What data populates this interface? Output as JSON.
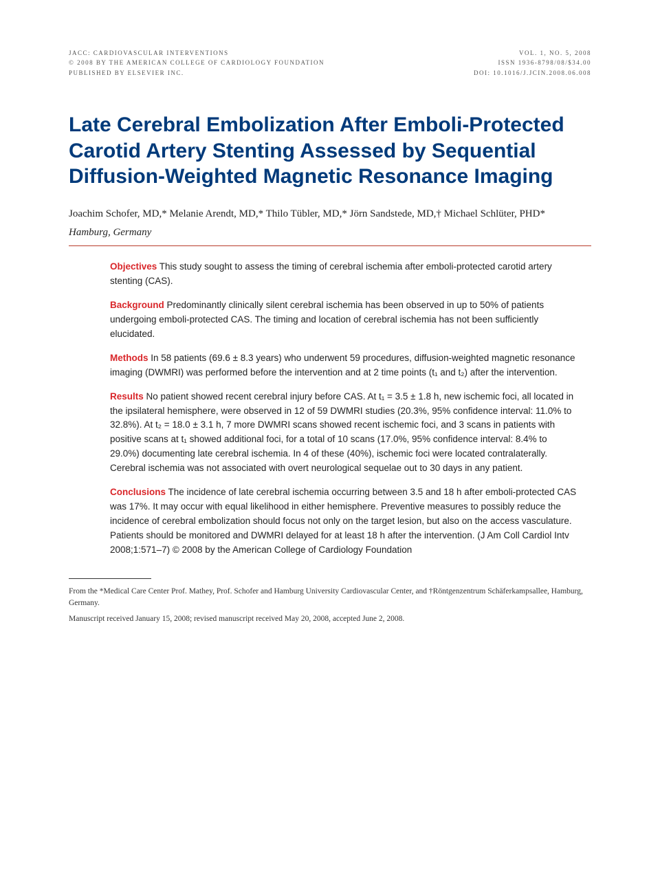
{
  "header": {
    "left_line1": "JACC: CARDIOVASCULAR INTERVENTIONS",
    "left_line2": "© 2008 BY THE AMERICAN COLLEGE OF CARDIOLOGY FOUNDATION",
    "left_line3": "PUBLISHED BY ELSEVIER INC.",
    "right_line1": "VOL. 1, NO. 5, 2008",
    "right_line2": "ISSN 1936-8798/08/$34.00",
    "right_line3": "DOI: 10.1016/j.jcin.2008.06.008"
  },
  "title": "Late Cerebral Embolization After Emboli-Protected Carotid Artery Stenting Assessed by Sequential Diffusion-Weighted Magnetic Resonance Imaging",
  "authors": "Joachim Schofer, MD,* Melanie Arendt, MD,* Thilo Tübler, MD,* Jörn Sandstede, MD,† Michael Schlüter, PHD*",
  "location": "Hamburg, Germany",
  "abstract": {
    "objectives_label": "Objectives",
    "objectives_text": " This study sought to assess the timing of cerebral ischemia after emboli-protected carotid artery stenting (CAS).",
    "background_label": "Background",
    "background_text": " Predominantly clinically silent cerebral ischemia has been observed in up to 50% of patients undergoing emboli-protected CAS. The timing and location of cerebral ischemia has not been sufficiently elucidated.",
    "methods_label": "Methods",
    "methods_text": " In 58 patients (69.6 ± 8.3 years) who underwent 59 procedures, diffusion-weighted magnetic resonance imaging (DWMRI) was performed before the intervention and at 2 time points (t₁ and t₂) after the intervention.",
    "results_label": "Results",
    "results_text": " No patient showed recent cerebral injury before CAS. At t₁ = 3.5 ± 1.8 h, new ischemic foci, all located in the ipsilateral hemisphere, were observed in 12 of 59 DWMRI studies (20.3%, 95% confidence interval: 11.0% to 32.8%). At t₂ = 18.0 ± 3.1 h, 7 more DWMRI scans showed recent ischemic foci, and 3 scans in patients with positive scans at t₁ showed additional foci, for a total of 10 scans (17.0%, 95% confidence interval: 8.4% to 29.0%) documenting late cerebral ischemia. In 4 of these (40%), ischemic foci were located contralaterally. Cerebral ischemia was not associated with overt neurological sequelae out to 30 days in any patient.",
    "conclusions_label": "Conclusions",
    "conclusions_text": " The incidence of late cerebral ischemia occurring between 3.5 and 18 h after emboli-protected CAS was 17%. It may occur with equal likelihood in either hemisphere. Preventive measures to possibly reduce the incidence of cerebral embolization should focus not only on the target lesion, but also on the access vasculature. Patients should be monitored and DWMRI delayed for at least 18 h after the intervention.   (J Am Coll Cardiol Intv 2008;1:571–7) © 2008 by the American College of Cardiology Foundation"
  },
  "footnotes": {
    "line1": "From the *Medical Care Center Prof. Mathey, Prof. Schofer and Hamburg University Cardiovascular Center, and †Röntgenzentrum Schäferkampsallee, Hamburg, Germany.",
    "line2": "Manuscript received January 15, 2008; revised manuscript received May 20, 2008, accepted June 2, 2008."
  },
  "colors": {
    "title_color": "#003a7a",
    "label_color": "#d9262a",
    "rule_color": "#b83b2a",
    "text_color": "#222222",
    "header_color": "#555555",
    "background": "#ffffff"
  },
  "typography": {
    "title_fontsize": 30,
    "title_family": "Arial",
    "body_fontsize": 13.5,
    "author_fontsize": 15,
    "header_fontsize": 9,
    "footnote_fontsize": 11.5
  }
}
